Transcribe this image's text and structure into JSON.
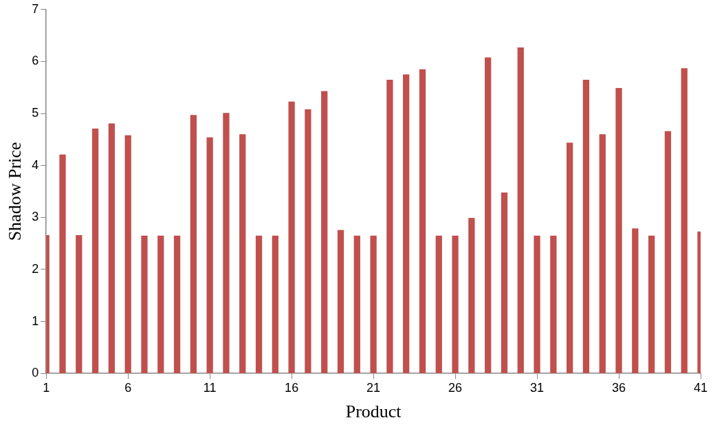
{
  "chart_data": {
    "type": "bar",
    "xlabel": "Product",
    "ylabel": "Shadow Price",
    "categories": [
      "1",
      null,
      null,
      null,
      null,
      "6",
      null,
      null,
      null,
      null,
      "11",
      null,
      null,
      null,
      null,
      "16",
      null,
      null,
      null,
      null,
      "21",
      null,
      null,
      null,
      null,
      "26",
      null,
      null,
      null,
      null,
      "31",
      null,
      null,
      null,
      null,
      "36",
      null,
      null,
      null,
      null,
      "41"
    ],
    "values": [
      2.66,
      4.21,
      2.66,
      4.71,
      4.81,
      4.58,
      2.65,
      2.65,
      2.65,
      4.97,
      4.54,
      5.01,
      4.6,
      2.65,
      2.65,
      5.23,
      5.08,
      5.43,
      2.76,
      2.65,
      2.65,
      5.65,
      5.75,
      5.85,
      2.65,
      2.65,
      2.99,
      6.08,
      3.48,
      6.27,
      2.65,
      2.65,
      4.44,
      5.65,
      4.6,
      5.49,
      2.79,
      2.65,
      4.66,
      5.87,
      2.73
    ],
    "color": "#c0504d",
    "ylim": [
      0,
      7
    ],
    "yticks": [
      0,
      1,
      2,
      3,
      4,
      5,
      6,
      7
    ],
    "grid": false,
    "legend": false
  }
}
